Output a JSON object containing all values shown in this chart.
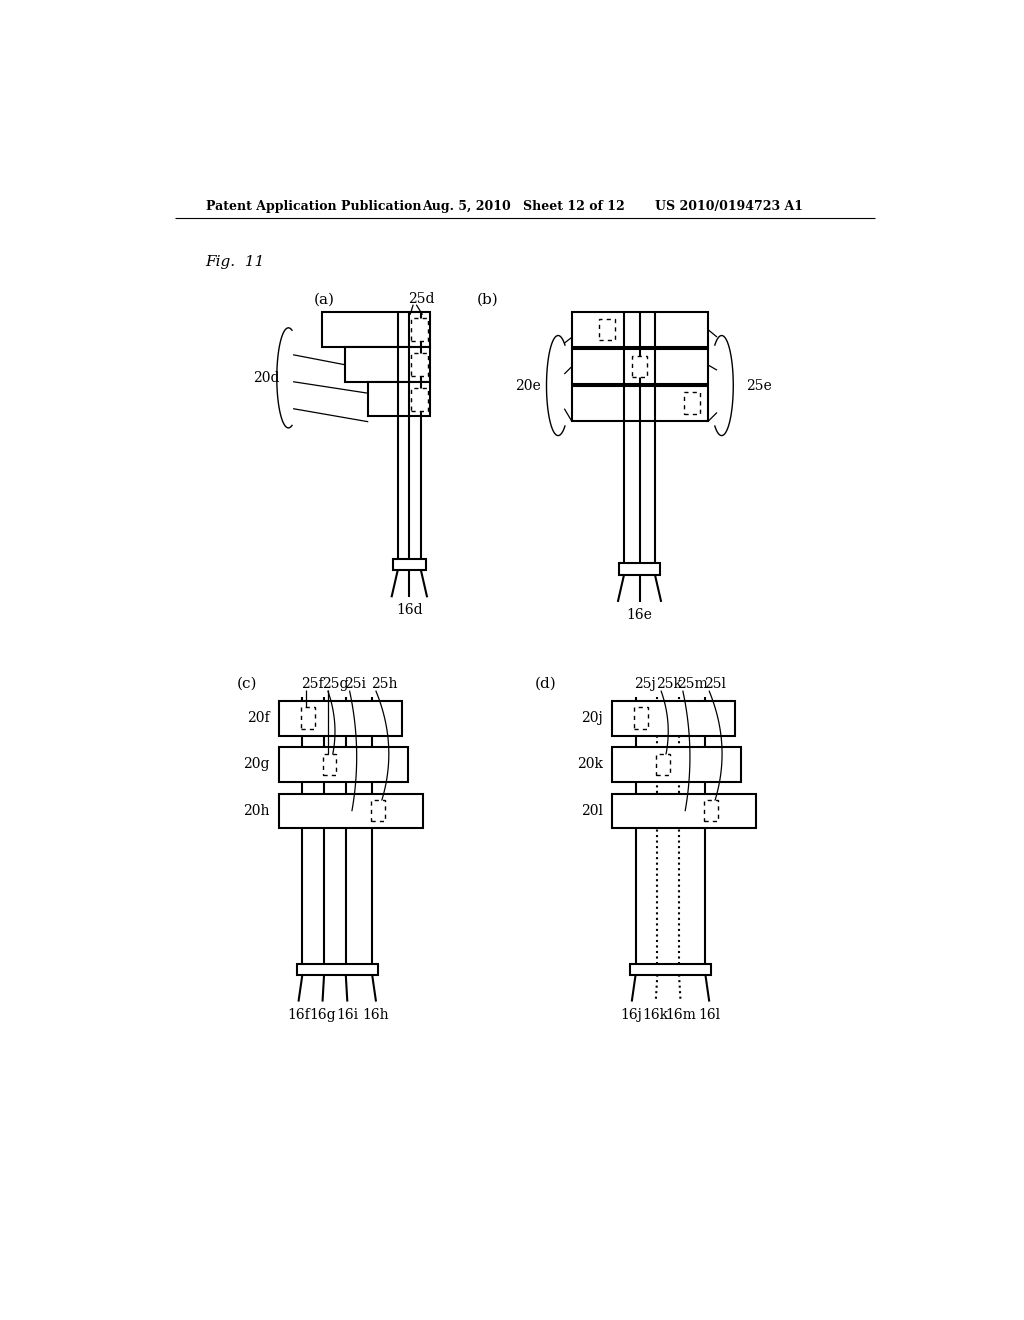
{
  "title_header": "Patent Application Publication",
  "date": "Aug. 5, 2010",
  "sheet": "Sheet 12 of 12",
  "patent_num": "US 2010/0194723 A1",
  "fig_label": "Fig.  11",
  "background": "#ffffff"
}
